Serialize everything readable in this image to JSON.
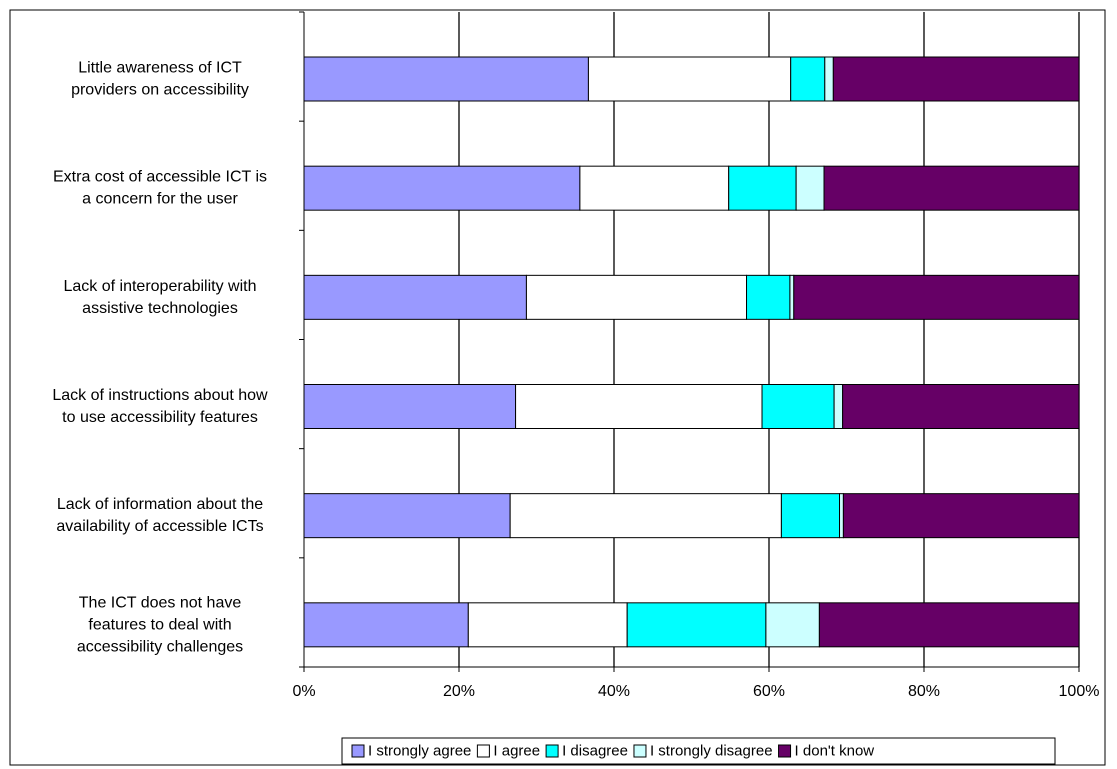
{
  "chart_data": {
    "type": "bar",
    "orientation": "horizontal",
    "stacked": "percent",
    "categories": [
      "Little awareness of ICT providers on accessibility",
      "Extra cost of accessible ICT is a concern for the user",
      "Lack of interoperability with assistive technologies",
      "Lack of instructions about how to use accessibility features",
      "Lack of information about the availability of accessible ICTs",
      "The ICT does not have features to deal with accessibility challenges"
    ],
    "category_lines": [
      [
        "Little awareness of ICT",
        "providers on accessibility"
      ],
      [
        "Extra cost of accessible ICT is",
        "a concern for the user"
      ],
      [
        "Lack of interoperability with",
        "assistive technologies"
      ],
      [
        "Lack of instructions about how",
        "to use accessibility features"
      ],
      [
        "Lack of information about the",
        "availability of accessible ICTs"
      ],
      [
        "The ICT does not have",
        "features to deal with",
        "accessibility challenges"
      ]
    ],
    "series": [
      {
        "name": "I strongly agree",
        "color": "#9999FF",
        "values": [
          36.7,
          35.6,
          28.7,
          27.3,
          26.6,
          21.2
        ]
      },
      {
        "name": "I agree",
        "color": "#FFFFFF",
        "values": [
          26.1,
          19.2,
          28.4,
          31.8,
          35.0,
          20.5
        ]
      },
      {
        "name": "I disagree",
        "color": "#00FFFF",
        "values": [
          4.4,
          8.7,
          5.6,
          9.3,
          7.5,
          17.9
        ]
      },
      {
        "name": "I strongly disagree",
        "color": "#CCFFFF",
        "values": [
          1.1,
          3.6,
          0.5,
          1.1,
          0.5,
          6.9
        ]
      },
      {
        "name": "I don't know",
        "color": "#660066",
        "values": [
          31.7,
          32.9,
          36.8,
          30.5,
          30.4,
          33.5
        ]
      }
    ],
    "x_ticks": [
      "0%",
      "20%",
      "40%",
      "60%",
      "80%",
      "100%"
    ],
    "xlim": [
      0,
      100
    ],
    "grid": true,
    "legend_position": "bottom"
  }
}
